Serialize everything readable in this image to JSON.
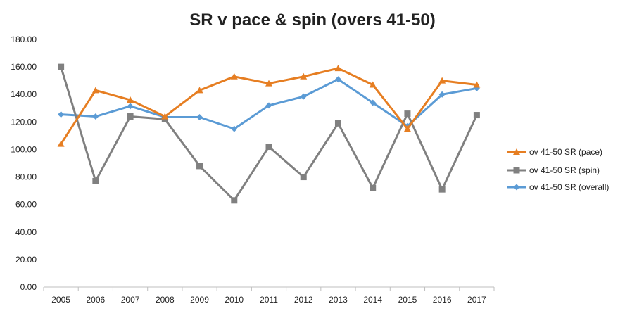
{
  "chart_data": {
    "type": "line",
    "title": "SR v pace & spin (overs 41-50)",
    "xlabel": "",
    "ylabel": "",
    "categories": [
      "2005",
      "2006",
      "2007",
      "2008",
      "2009",
      "2010",
      "2011",
      "2012",
      "2013",
      "2014",
      "2015",
      "2016",
      "2017"
    ],
    "ylim": [
      0,
      180
    ],
    "yticks": [
      "0.00",
      "20.00",
      "40.00",
      "60.00",
      "80.00",
      "100.00",
      "120.00",
      "140.00",
      "160.00",
      "180.00"
    ],
    "grid": false,
    "legend_position": "right",
    "series": [
      {
        "name": "ov 41-50 SR (pace)",
        "color": "#E67E22",
        "marker": "triangle",
        "values": [
          104,
          143,
          136,
          124,
          143,
          153,
          148,
          153,
          159,
          147,
          115,
          150,
          147
        ]
      },
      {
        "name": "ov 41-50 SR (spin)",
        "color": "#808080",
        "marker": "square",
        "values": [
          160,
          77,
          124,
          122,
          88,
          63,
          102,
          80,
          119,
          72,
          126,
          71,
          125
        ]
      },
      {
        "name": "ov 41-50 SR (overall)",
        "color": "#5B9BD5",
        "marker": "diamond",
        "values": [
          125.5,
          124,
          131.5,
          123.5,
          123.5,
          115,
          132,
          138.5,
          151,
          134,
          117,
          140,
          144.5
        ]
      }
    ]
  }
}
